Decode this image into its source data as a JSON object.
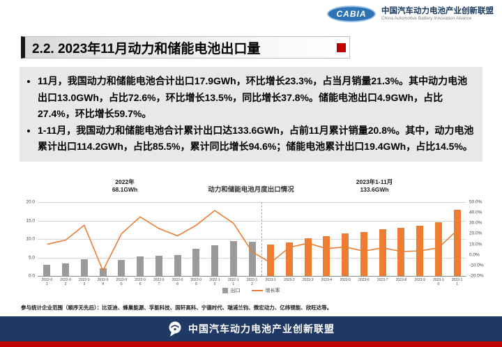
{
  "header": {
    "logo_text": "CABIA",
    "org_cn": "中国汽车动力电池产业创新联盟",
    "org_en": "China Automotive Battery Innovation Alliance"
  },
  "title": "2.2.  2023年11月动力和储能电池出口量",
  "bullets": [
    "11月，我国动力和储能电池合计出口17.9GWh，环比增长23.3%，占当月销量21.3%。其中动力电池出口13.0GWh，占比72.6%，环比增长13.5%，同比增长37.8%。储能电池出口4.9GWh，占比27.4%，环比增长59.7%。",
    "1-11月，我国动力和储能电池合计累计出口达133.6GWh，占前11月累计销量20.8%。其中，动力电池累计出口114.2GWh，占比85.5%，累计同比增长94.6%；储能电池累计出口19.4GWh，占比14.5%。"
  ],
  "chart_data": {
    "type": "bar",
    "title": "动力和储能电池月度出口情况",
    "annotations": [
      {
        "label": "2022年",
        "value": "68.1GWh"
      },
      {
        "label": "2023年1-11月",
        "value": "133.6GWh"
      }
    ],
    "categories": [
      "2022-01",
      "2022-02",
      "2022-03",
      "2022-04",
      "2022-05",
      "2022-06",
      "2022-07",
      "2022-08",
      "2022-09",
      "2022-10",
      "2022-11",
      "2022-12",
      "2023-1",
      "2023-2",
      "2023-3",
      "2023-4",
      "2023-5",
      "2023-6",
      "2023-7",
      "2023-8",
      "2023-9",
      "2023-10",
      "2023-11"
    ],
    "series": [
      {
        "name": "出口",
        "type": "bar",
        "values": [
          3.0,
          3.4,
          4.6,
          2.1,
          4.4,
          5.2,
          5.5,
          5.7,
          7.3,
          8.3,
          9.4,
          9.2,
          8.5,
          9.1,
          10.1,
          10.7,
          11.5,
          11.9,
          12.7,
          13.1,
          13.6,
          14.5,
          17.9
        ]
      },
      {
        "name": "增长率",
        "type": "line",
        "values": [
          10,
          14,
          28,
          -15,
          20,
          36,
          25,
          18,
          28,
          42,
          30,
          3,
          -7.6,
          7.1,
          11.0,
          5.9,
          7.5,
          3.5,
          6.7,
          3.1,
          3.8,
          6.6,
          23.3
        ]
      }
    ],
    "split_index": 12,
    "left_axis": {
      "min": 0,
      "max": 20,
      "ticks": [
        "20.0",
        "15.0",
        "10.0",
        "5.0",
        "0.0"
      ]
    },
    "right_axis": {
      "min": -20,
      "max": 50,
      "ticks": [
        "50.0%",
        "40.0%",
        "30.0%",
        "20.0%",
        "10.0%",
        "0.0%",
        "-10.0%",
        "-20.0%"
      ]
    },
    "colors": {
      "bar2022": "#9a9a9a",
      "bar2023": "#ed7d31",
      "line": "#ed7d31",
      "split": "#8faadc"
    },
    "grid": true,
    "legend_position": "bottom"
  },
  "note": "参与统计企业范围（顺序无先后）：比亚迪、蜂巢能源、孚能科技、国轩高科、宁德时代、瑞浦兰钧、微宏动力、亿纬锂能、欣旺达等。",
  "footer": {
    "text": "中国汽车动力电池产业创新联盟"
  }
}
